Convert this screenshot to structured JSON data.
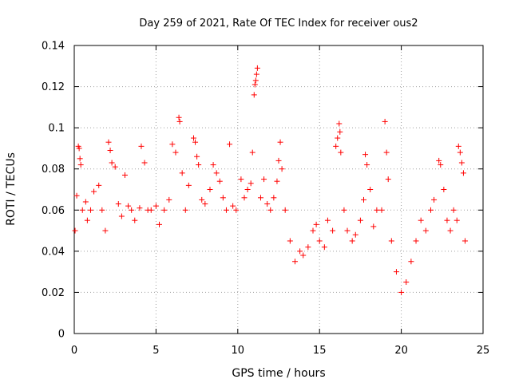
{
  "chart_data": {
    "type": "scatter",
    "title": "Day 259 of 2021, Rate Of TEC Index for receiver ous2",
    "xlabel": "GPS time / hours",
    "ylabel": "ROTI / TECUs",
    "xlim": [
      0,
      25
    ],
    "ylim": [
      0,
      0.14
    ],
    "xticks": [
      0,
      5,
      10,
      15,
      20,
      25
    ],
    "xtick_labels": [
      "0",
      "5",
      "10",
      "15",
      "20",
      "25"
    ],
    "yticks": [
      0,
      0.02,
      0.04,
      0.06,
      0.08,
      0.1,
      0.12,
      0.14
    ],
    "ytick_labels": [
      "0",
      "0.02",
      "0.04",
      "0.06",
      "0.08",
      "0.1",
      "0.12",
      "0.14"
    ],
    "grid": true,
    "legend": "none",
    "marker": "plus",
    "color": "#ff0000",
    "series": [
      {
        "points": [
          [
            0.05,
            0.05
          ],
          [
            0.15,
            0.067
          ],
          [
            0.25,
            0.091
          ],
          [
            0.3,
            0.09
          ],
          [
            0.35,
            0.085
          ],
          [
            0.4,
            0.082
          ],
          [
            0.5,
            0.06
          ],
          [
            0.7,
            0.064
          ],
          [
            0.8,
            0.055
          ],
          [
            1.0,
            0.06
          ],
          [
            1.2,
            0.069
          ],
          [
            1.5,
            0.072
          ],
          [
            1.7,
            0.06
          ],
          [
            1.9,
            0.05
          ],
          [
            2.1,
            0.093
          ],
          [
            2.2,
            0.089
          ],
          [
            2.3,
            0.083
          ],
          [
            2.5,
            0.081
          ],
          [
            2.7,
            0.063
          ],
          [
            2.9,
            0.057
          ],
          [
            3.1,
            0.077
          ],
          [
            3.3,
            0.062
          ],
          [
            3.5,
            0.06
          ],
          [
            3.7,
            0.055
          ],
          [
            4.0,
            0.061
          ],
          [
            4.1,
            0.091
          ],
          [
            4.3,
            0.083
          ],
          [
            4.5,
            0.06
          ],
          [
            4.7,
            0.06
          ],
          [
            5.0,
            0.062
          ],
          [
            5.2,
            0.053
          ],
          [
            5.5,
            0.06
          ],
          [
            5.8,
            0.065
          ],
          [
            6.0,
            0.092
          ],
          [
            6.2,
            0.088
          ],
          [
            6.4,
            0.105
          ],
          [
            6.45,
            0.103
          ],
          [
            6.6,
            0.078
          ],
          [
            6.8,
            0.06
          ],
          [
            7.0,
            0.072
          ],
          [
            7.3,
            0.095
          ],
          [
            7.4,
            0.093
          ],
          [
            7.5,
            0.086
          ],
          [
            7.6,
            0.082
          ],
          [
            7.8,
            0.065
          ],
          [
            8.0,
            0.063
          ],
          [
            8.3,
            0.07
          ],
          [
            8.5,
            0.082
          ],
          [
            8.7,
            0.078
          ],
          [
            8.9,
            0.074
          ],
          [
            9.1,
            0.066
          ],
          [
            9.3,
            0.06
          ],
          [
            9.5,
            0.092
          ],
          [
            9.7,
            0.062
          ],
          [
            9.9,
            0.06
          ],
          [
            10.2,
            0.075
          ],
          [
            10.4,
            0.066
          ],
          [
            10.6,
            0.07
          ],
          [
            10.8,
            0.073
          ],
          [
            10.9,
            0.088
          ],
          [
            11.0,
            0.116
          ],
          [
            11.05,
            0.121
          ],
          [
            11.1,
            0.123
          ],
          [
            11.15,
            0.126
          ],
          [
            11.2,
            0.129
          ],
          [
            11.4,
            0.066
          ],
          [
            11.6,
            0.075
          ],
          [
            11.8,
            0.063
          ],
          [
            12.0,
            0.06
          ],
          [
            12.2,
            0.066
          ],
          [
            12.4,
            0.074
          ],
          [
            12.5,
            0.084
          ],
          [
            12.6,
            0.093
          ],
          [
            12.7,
            0.08
          ],
          [
            12.9,
            0.06
          ],
          [
            13.2,
            0.045
          ],
          [
            13.5,
            0.035
          ],
          [
            13.8,
            0.04
          ],
          [
            14.0,
            0.038
          ],
          [
            14.3,
            0.042
          ],
          [
            14.6,
            0.05
          ],
          [
            14.8,
            0.053
          ],
          [
            15.0,
            0.045
          ],
          [
            15.3,
            0.042
          ],
          [
            15.5,
            0.055
          ],
          [
            15.8,
            0.05
          ],
          [
            16.0,
            0.091
          ],
          [
            16.1,
            0.095
          ],
          [
            16.2,
            0.102
          ],
          [
            16.25,
            0.098
          ],
          [
            16.3,
            0.088
          ],
          [
            16.5,
            0.06
          ],
          [
            16.7,
            0.05
          ],
          [
            17.0,
            0.045
          ],
          [
            17.2,
            0.048
          ],
          [
            17.5,
            0.055
          ],
          [
            17.7,
            0.065
          ],
          [
            17.8,
            0.087
          ],
          [
            17.9,
            0.082
          ],
          [
            18.1,
            0.07
          ],
          [
            18.3,
            0.052
          ],
          [
            18.5,
            0.06
          ],
          [
            18.8,
            0.06
          ],
          [
            19.0,
            0.103
          ],
          [
            19.1,
            0.088
          ],
          [
            19.2,
            0.075
          ],
          [
            19.4,
            0.045
          ],
          [
            19.7,
            0.03
          ],
          [
            20.0,
            0.02
          ],
          [
            20.3,
            0.025
          ],
          [
            20.6,
            0.035
          ],
          [
            20.9,
            0.045
          ],
          [
            21.2,
            0.055
          ],
          [
            21.5,
            0.05
          ],
          [
            21.8,
            0.06
          ],
          [
            22.0,
            0.065
          ],
          [
            22.3,
            0.084
          ],
          [
            22.4,
            0.082
          ],
          [
            22.6,
            0.07
          ],
          [
            22.8,
            0.055
          ],
          [
            23.0,
            0.05
          ],
          [
            23.2,
            0.06
          ],
          [
            23.4,
            0.055
          ],
          [
            23.5,
            0.091
          ],
          [
            23.6,
            0.088
          ],
          [
            23.7,
            0.083
          ],
          [
            23.8,
            0.078
          ],
          [
            23.9,
            0.045
          ]
        ]
      }
    ]
  }
}
